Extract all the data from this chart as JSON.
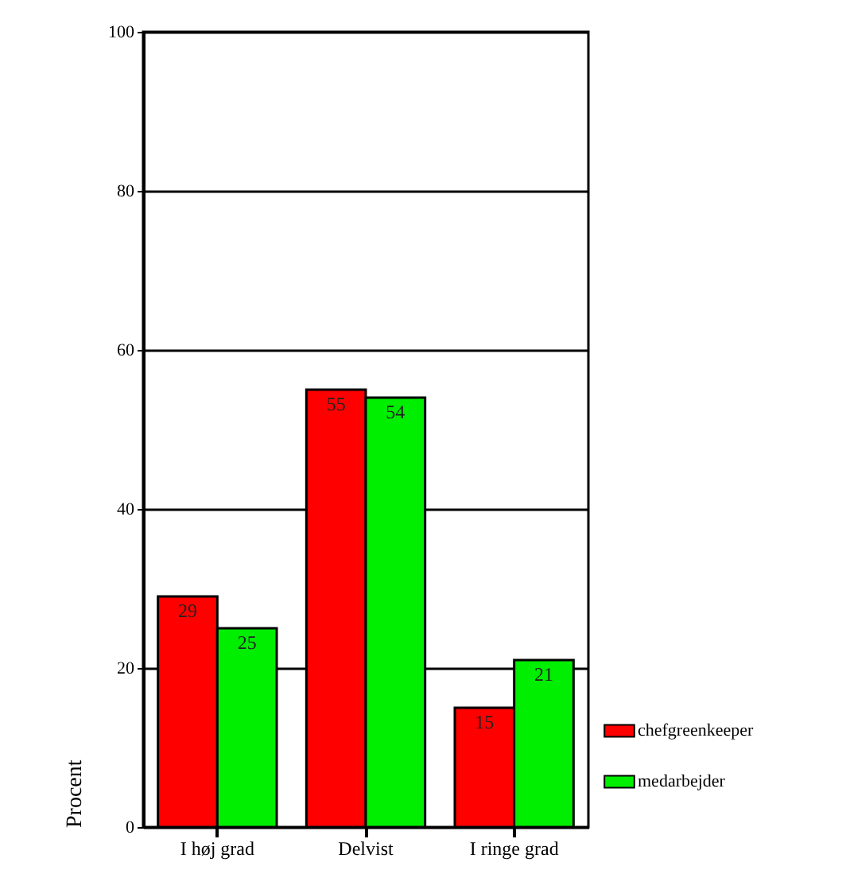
{
  "chart_data": {
    "type": "bar",
    "ylabel": "Procent",
    "categories": [
      "I høj grad",
      "Delvist",
      "I ringe grad"
    ],
    "series": [
      {
        "name": "chefgreenkeeper",
        "color": "#ff0000",
        "values": [
          29,
          55,
          15
        ]
      },
      {
        "name": "medarbejder",
        "color": "#00ee00",
        "values": [
          25,
          54,
          21
        ]
      }
    ],
    "ylim": [
      0,
      100
    ],
    "yticks": [
      0,
      20,
      40,
      60,
      80,
      100
    ],
    "grid": "y",
    "legend": "bottom right",
    "data_labels": true
  }
}
